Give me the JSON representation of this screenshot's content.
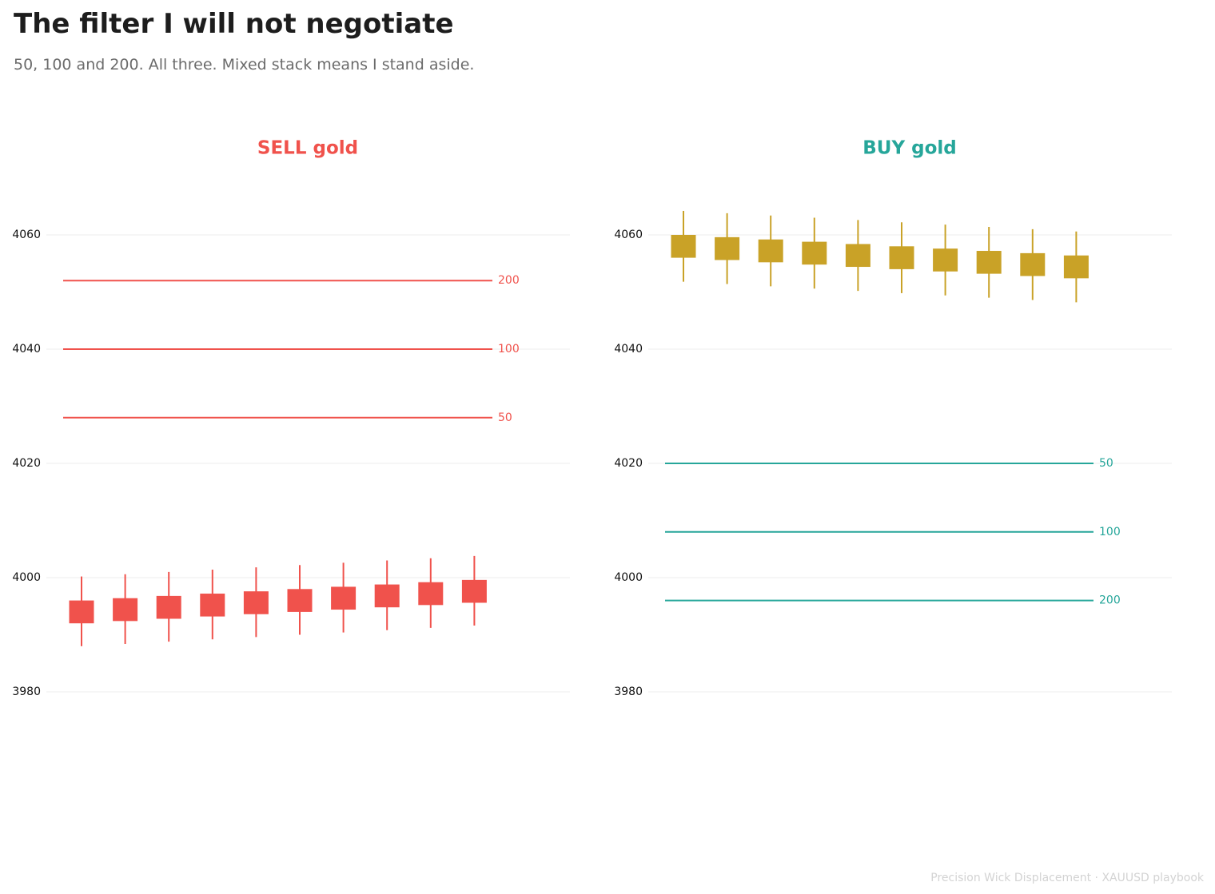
{
  "title": "The filter I will not negotiate",
  "subtitle": "50, 100 and 200. All three. Mixed stack means I stand aside.",
  "footer": "Precision Wick Displacement  ·  XAUUSD playbook",
  "colors": {
    "sell": "#f0524c",
    "buy": "#26a69a",
    "gold": "#c9a227",
    "grid": "#eeeeee"
  },
  "chart_data": [
    {
      "type": "candlestick",
      "title": "SELL gold",
      "title_color": "#f0524c",
      "candle_color": "#f0524c",
      "ylim": [
        3980,
        4060
      ],
      "yticks": [
        3980,
        4000,
        4020,
        4040,
        4060
      ],
      "candles": [
        {
          "open": 3992.0,
          "close": 3996.0,
          "high": 4000.2,
          "low": 3988.0
        },
        {
          "open": 3992.4,
          "close": 3996.4,
          "high": 4000.6,
          "low": 3988.4
        },
        {
          "open": 3992.8,
          "close": 3996.8,
          "high": 4001.0,
          "low": 3988.8
        },
        {
          "open": 3993.2,
          "close": 3997.2,
          "high": 4001.4,
          "low": 3989.2
        },
        {
          "open": 3993.6,
          "close": 3997.6,
          "high": 4001.8,
          "low": 3989.6
        },
        {
          "open": 3994.0,
          "close": 3998.0,
          "high": 4002.2,
          "low": 3990.0
        },
        {
          "open": 3994.4,
          "close": 3998.4,
          "high": 4002.6,
          "low": 3990.4
        },
        {
          "open": 3994.8,
          "close": 3998.8,
          "high": 4003.0,
          "low": 3990.8
        },
        {
          "open": 3995.2,
          "close": 3999.2,
          "high": 4003.4,
          "low": 3991.2
        },
        {
          "open": 3995.6,
          "close": 3999.6,
          "high": 4003.8,
          "low": 3991.6
        }
      ],
      "moving_averages": [
        {
          "name": "200",
          "value": 4052
        },
        {
          "name": "100",
          "value": 4040
        },
        {
          "name": "50",
          "value": 4028
        }
      ]
    },
    {
      "type": "candlestick",
      "title": "BUY gold",
      "title_color": "#26a69a",
      "candle_color": "#c9a227",
      "ylim": [
        3980,
        4060
      ],
      "yticks": [
        3980,
        4000,
        4020,
        4040,
        4060
      ],
      "candles": [
        {
          "open": 4060.0,
          "close": 4056.0,
          "high": 4064.2,
          "low": 4051.8
        },
        {
          "open": 4059.6,
          "close": 4055.6,
          "high": 4063.8,
          "low": 4051.4
        },
        {
          "open": 4059.2,
          "close": 4055.2,
          "high": 4063.4,
          "low": 4051.0
        },
        {
          "open": 4058.8,
          "close": 4054.8,
          "high": 4063.0,
          "low": 4050.6
        },
        {
          "open": 4058.4,
          "close": 4054.4,
          "high": 4062.6,
          "low": 4050.2
        },
        {
          "open": 4058.0,
          "close": 4054.0,
          "high": 4062.2,
          "low": 4049.8
        },
        {
          "open": 4057.6,
          "close": 4053.6,
          "high": 4061.8,
          "low": 4049.4
        },
        {
          "open": 4057.2,
          "close": 4053.2,
          "high": 4061.4,
          "low": 4049.0
        },
        {
          "open": 4056.8,
          "close": 4052.8,
          "high": 4061.0,
          "low": 4048.6
        },
        {
          "open": 4056.4,
          "close": 4052.4,
          "high": 4060.6,
          "low": 4048.2
        }
      ],
      "moving_averages": [
        {
          "name": "50",
          "value": 4020
        },
        {
          "name": "100",
          "value": 4008
        },
        {
          "name": "200",
          "value": 3996
        }
      ]
    }
  ]
}
